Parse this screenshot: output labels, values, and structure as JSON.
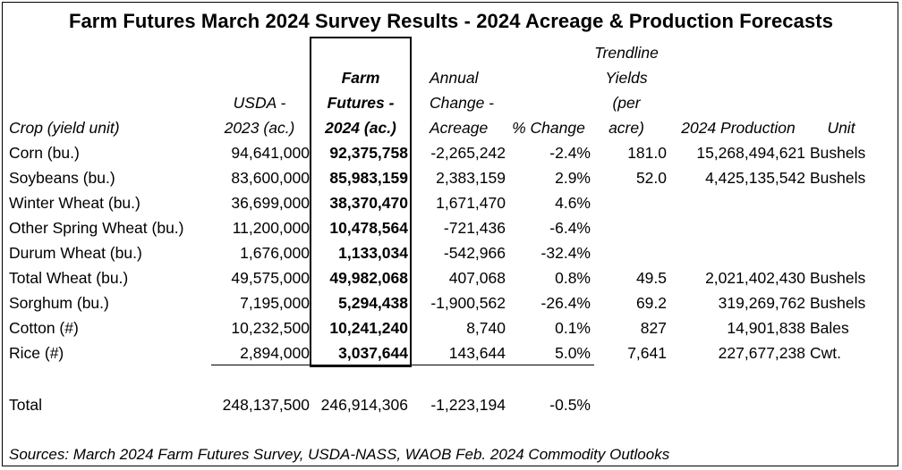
{
  "title": "Farm Futures March 2024 Survey Results - 2024 Acreage & Production Forecasts",
  "headers": {
    "crop": [
      "Crop (yield unit)"
    ],
    "usda": [
      "USDA -",
      "2023 (ac.)"
    ],
    "ff": [
      "Farm",
      "Futures -",
      "2024 (ac.)"
    ],
    "annual": [
      "Annual",
      "Change -",
      "Acreage"
    ],
    "pct": [
      "% Change"
    ],
    "trend": [
      "Trendline",
      "Yields",
      "(per",
      "acre)"
    ],
    "prod": [
      "2024 Production"
    ],
    "unit": [
      "Unit"
    ]
  },
  "rows": [
    {
      "crop": "Corn (bu.)",
      "usda": "94,641,000",
      "ff": "92,375,758",
      "change": "-2,265,242",
      "pct": "-2.4%",
      "yield": "181.0",
      "prod": "15,268,494,621",
      "unit": "Bushels"
    },
    {
      "crop": "Soybeans (bu.)",
      "usda": "83,600,000",
      "ff": "85,983,159",
      "change": "2,383,159",
      "pct": "2.9%",
      "yield": "52.0",
      "prod": "4,425,135,542",
      "unit": "Bushels"
    },
    {
      "crop": "Winter Wheat (bu.)",
      "usda": "36,699,000",
      "ff": "38,370,470",
      "change": "1,671,470",
      "pct": "4.6%",
      "yield": "",
      "prod": "",
      "unit": ""
    },
    {
      "crop": "Other Spring Wheat (bu.)",
      "usda": "11,200,000",
      "ff": "10,478,564",
      "change": "-721,436",
      "pct": "-6.4%",
      "yield": "",
      "prod": "",
      "unit": ""
    },
    {
      "crop": "Durum Wheat (bu.)",
      "usda": "1,676,000",
      "ff": "1,133,034",
      "change": "-542,966",
      "pct": "-32.4%",
      "yield": "",
      "prod": "",
      "unit": ""
    },
    {
      "crop": "Total Wheat (bu.)",
      "usda": "49,575,000",
      "ff": "49,982,068",
      "change": "407,068",
      "pct": "0.8%",
      "yield": "49.5",
      "prod": "2,021,402,430",
      "unit": "Bushels"
    },
    {
      "crop": "Sorghum (bu.)",
      "usda": "7,195,000",
      "ff": "5,294,438",
      "change": "-1,900,562",
      "pct": "-26.4%",
      "yield": "69.2",
      "prod": "319,269,762",
      "unit": "Bushels"
    },
    {
      "crop": "Cotton (#)",
      "usda": "10,232,500",
      "ff": "10,241,240",
      "change": "8,740",
      "pct": "0.1%",
      "yield": "827",
      "prod": "14,901,838",
      "unit": "Bales"
    },
    {
      "crop": "Rice (#)",
      "usda": "2,894,000",
      "ff": "3,037,644",
      "change": "143,644",
      "pct": "5.0%",
      "yield": "7,641",
      "prod": "227,677,238",
      "unit": "Cwt."
    }
  ],
  "total": {
    "crop": "Total",
    "usda": "248,137,500",
    "ff": "246,914,306",
    "change": "-1,223,194",
    "pct": "-0.5%"
  },
  "source": "Sources: March 2024 Farm Futures Survey, USDA-NASS, WAOB Feb. 2024 Commodity Outlooks"
}
